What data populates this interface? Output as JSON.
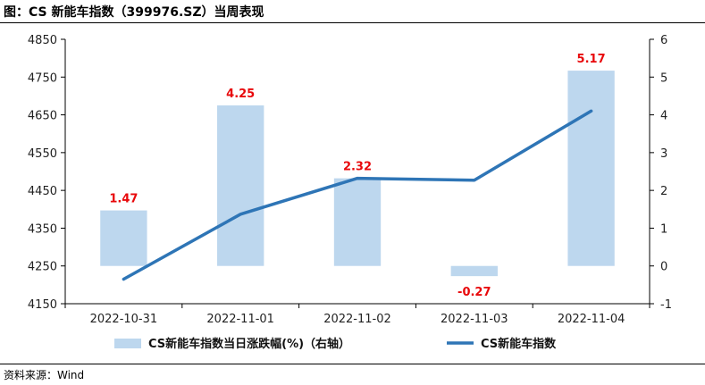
{
  "header": {
    "title": "图：CS 新能车指数（399976.SZ）当周表现"
  },
  "footer": {
    "source": "资料来源：Wind"
  },
  "colors": {
    "bar": "#bdd7ee",
    "line": "#2e75b6",
    "label": "#e8080b",
    "axis": "#000000"
  },
  "chart_data": {
    "type": "bar",
    "categories": [
      "2022-10-31",
      "2022-11-01",
      "2022-11-02",
      "2022-11-03",
      "2022-11-04"
    ],
    "series": [
      {
        "name": "CS新能车指数当日涨跌幅(%)（右轴）",
        "type": "bar",
        "axis": "right",
        "values": [
          1.47,
          4.25,
          2.32,
          -0.27,
          5.17
        ],
        "labels": [
          "1.47",
          "4.25",
          "2.32",
          "-0.27",
          "5.17"
        ]
      },
      {
        "name": "CS新能车指数",
        "type": "line",
        "axis": "left",
        "values": [
          4215,
          4387,
          4482,
          4477,
          4660
        ]
      }
    ],
    "left_axis": {
      "min": 4150,
      "max": 4850,
      "ticks": [
        4150,
        4250,
        4350,
        4450,
        4550,
        4650,
        4750,
        4850
      ]
    },
    "right_axis": {
      "min": -1,
      "max": 6,
      "ticks": [
        -1,
        0,
        1,
        2,
        3,
        4,
        5,
        6
      ]
    },
    "grid": false,
    "legend_position": "bottom"
  }
}
